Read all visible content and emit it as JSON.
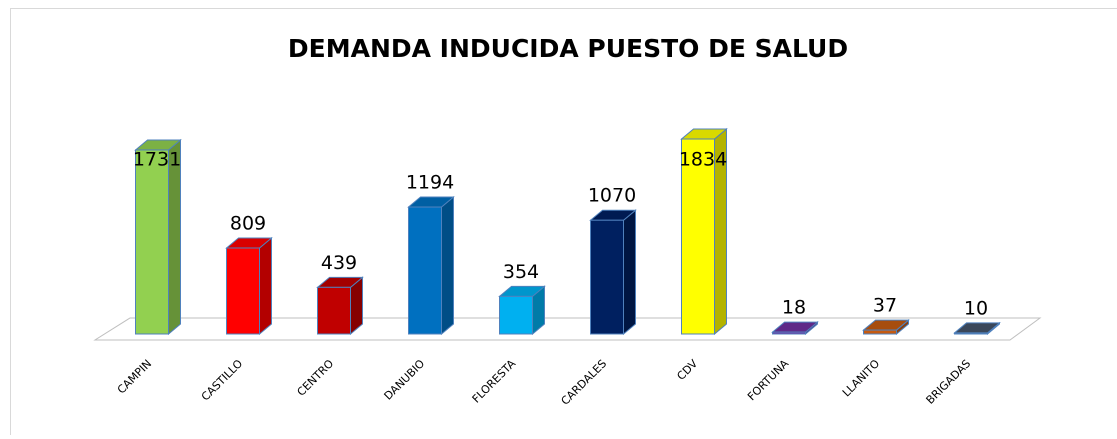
{
  "chart_data": {
    "type": "bar3d",
    "title": "DEMANDA INDUCIDA PUESTO DE  SALUD",
    "categories": [
      "CAMPIN",
      "CASTILLO",
      "CENTRO",
      "DANUBIO",
      "FLORESTA",
      "CARDALES",
      "CDV",
      "FORTUNA",
      "LLANITO",
      "BRIGADAS"
    ],
    "values": [
      1731,
      809,
      439,
      1194,
      354,
      1070,
      1834,
      18,
      37,
      10
    ],
    "colors": [
      "#92d050",
      "#ff0000",
      "#c00000",
      "#0070c0",
      "#00b0f0",
      "#002060",
      "#ffff00",
      "#7030a0",
      "#c55a11",
      "#44546a"
    ]
  }
}
